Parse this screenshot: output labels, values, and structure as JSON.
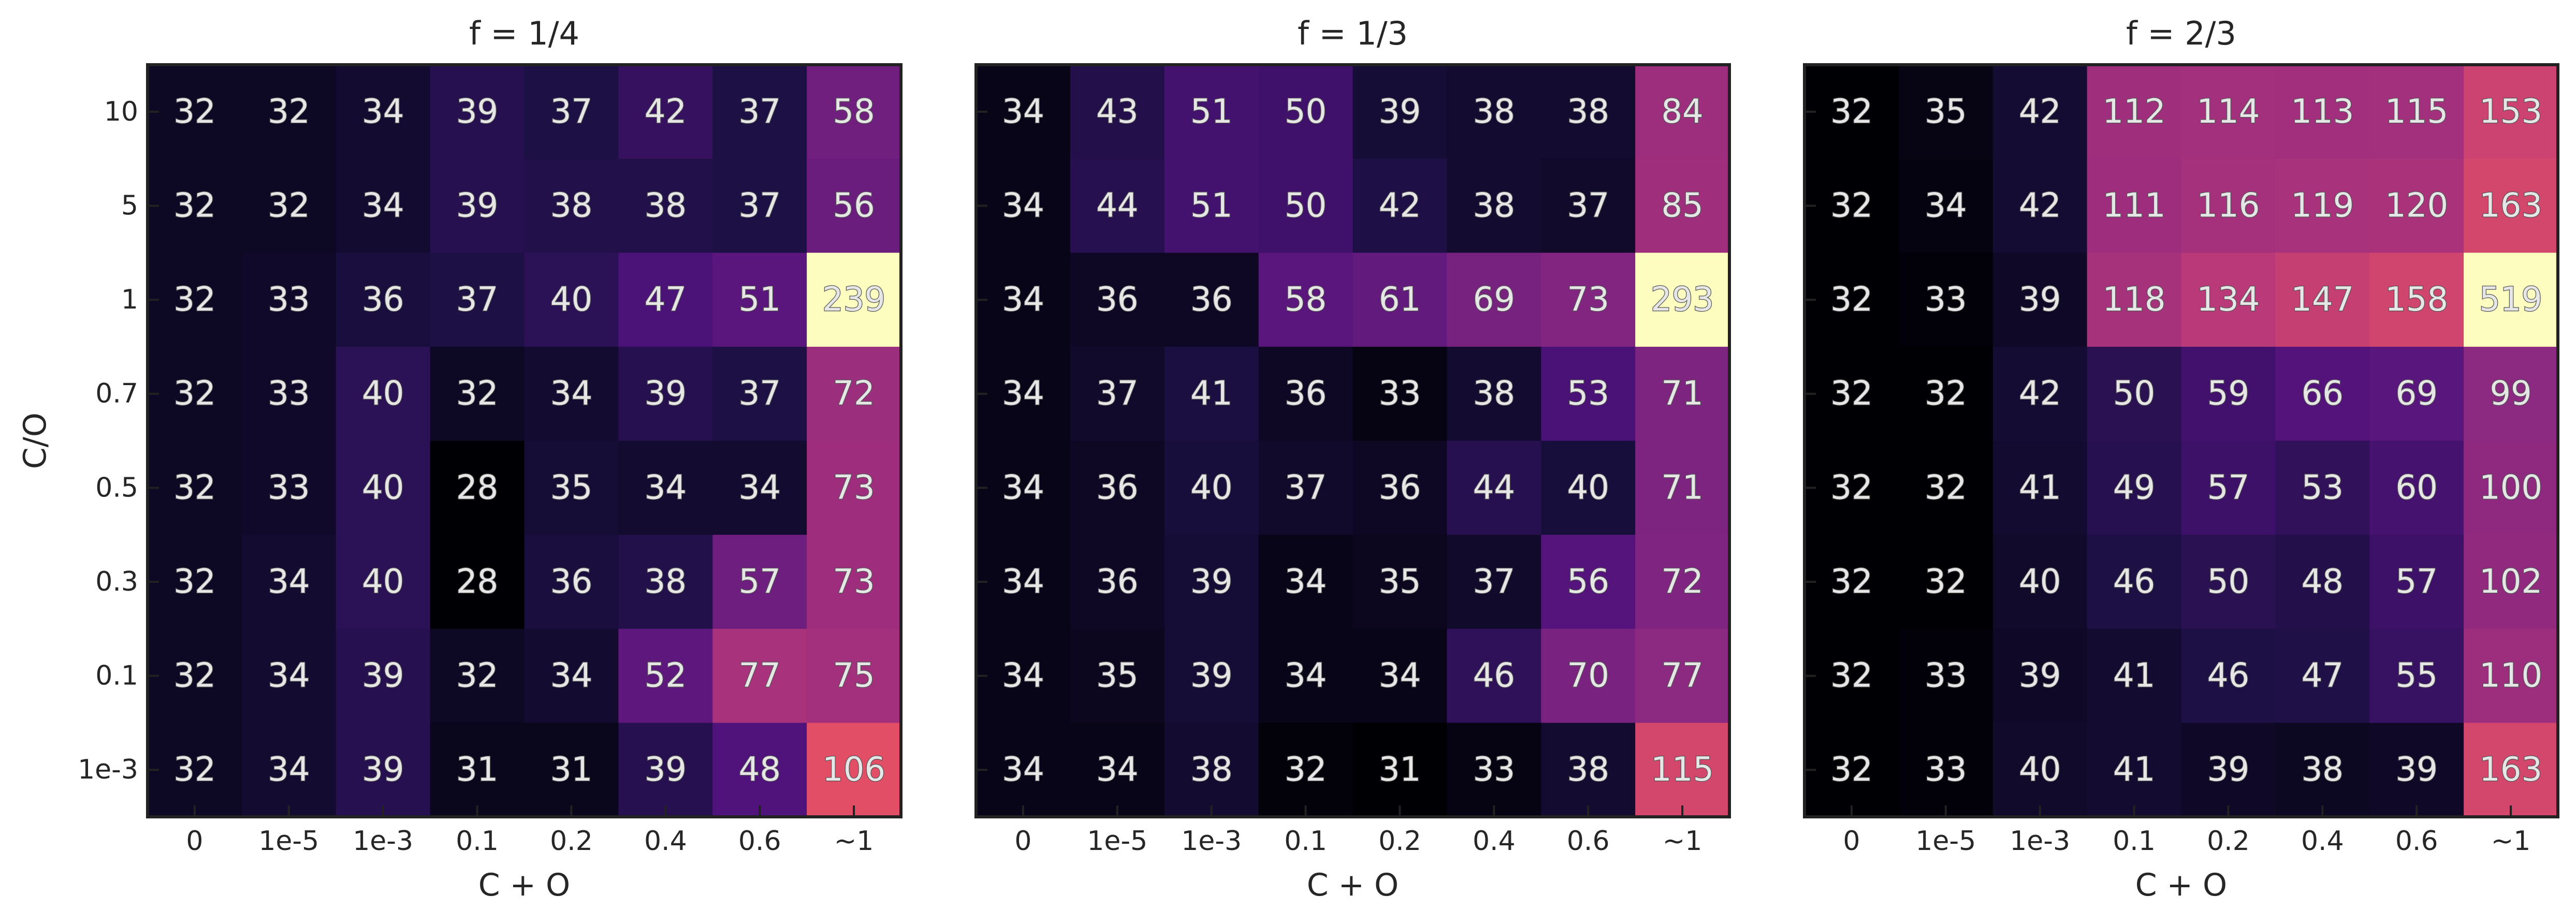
{
  "chart_data": [
    {
      "type": "heatmap",
      "title": "f = 1/4",
      "xlabel": "C + O",
      "ylabel": "C/O",
      "x": [
        "0",
        "1e-5",
        "1e-3",
        "0.1",
        "0.2",
        "0.4",
        "0.6",
        "~1"
      ],
      "y": [
        "10",
        "5",
        "1",
        "0.7",
        "0.5",
        "0.3",
        "0.1",
        "1e-3"
      ],
      "values": [
        [
          32,
          32,
          34,
          39,
          37,
          42,
          37,
          58
        ],
        [
          32,
          32,
          34,
          39,
          38,
          38,
          37,
          56
        ],
        [
          32,
          33,
          36,
          37,
          40,
          47,
          51,
          239
        ],
        [
          32,
          33,
          40,
          32,
          34,
          39,
          37,
          72
        ],
        [
          32,
          33,
          40,
          28,
          35,
          34,
          34,
          73
        ],
        [
          32,
          34,
          40,
          28,
          36,
          38,
          57,
          73
        ],
        [
          32,
          34,
          39,
          32,
          34,
          52,
          77,
          75
        ],
        [
          32,
          34,
          39,
          31,
          31,
          39,
          48,
          106
        ]
      ],
      "colormap": "magma",
      "grid": false
    },
    {
      "type": "heatmap",
      "title": "f = 1/3",
      "xlabel": "C + O",
      "ylabel": "",
      "x": [
        "0",
        "1e-5",
        "1e-3",
        "0.1",
        "0.2",
        "0.4",
        "0.6",
        "~1"
      ],
      "y": [
        "10",
        "5",
        "1",
        "0.7",
        "0.5",
        "0.3",
        "0.1",
        "1e-3"
      ],
      "values": [
        [
          34,
          43,
          51,
          50,
          39,
          38,
          38,
          84
        ],
        [
          34,
          44,
          51,
          50,
          42,
          38,
          37,
          85
        ],
        [
          34,
          36,
          36,
          58,
          61,
          69,
          73,
          293
        ],
        [
          34,
          37,
          41,
          36,
          33,
          38,
          53,
          71
        ],
        [
          34,
          36,
          40,
          37,
          36,
          44,
          40,
          71
        ],
        [
          34,
          36,
          39,
          34,
          35,
          37,
          56,
          72
        ],
        [
          34,
          35,
          39,
          34,
          34,
          46,
          70,
          77
        ],
        [
          34,
          34,
          38,
          32,
          31,
          33,
          38,
          115
        ]
      ],
      "colormap": "magma",
      "grid": false
    },
    {
      "type": "heatmap",
      "title": "f = 2/3",
      "xlabel": "C + O",
      "ylabel": "",
      "x": [
        "0",
        "1e-5",
        "1e-3",
        "0.1",
        "0.2",
        "0.4",
        "0.6",
        "~1"
      ],
      "y": [
        "10",
        "5",
        "1",
        "0.7",
        "0.5",
        "0.3",
        "0.1",
        "1e-3"
      ],
      "values": [
        [
          32,
          35,
          42,
          112,
          114,
          113,
          115,
          153
        ],
        [
          32,
          34,
          42,
          111,
          116,
          119,
          120,
          163
        ],
        [
          32,
          33,
          39,
          118,
          134,
          147,
          158,
          519
        ],
        [
          32,
          32,
          42,
          50,
          59,
          66,
          69,
          99
        ],
        [
          32,
          32,
          41,
          49,
          57,
          53,
          60,
          100
        ],
        [
          32,
          32,
          40,
          46,
          50,
          48,
          57,
          102
        ],
        [
          32,
          33,
          39,
          41,
          46,
          47,
          55,
          110
        ],
        [
          32,
          33,
          40,
          41,
          39,
          38,
          39,
          163
        ]
      ],
      "colormap": "magma",
      "grid": false
    }
  ]
}
